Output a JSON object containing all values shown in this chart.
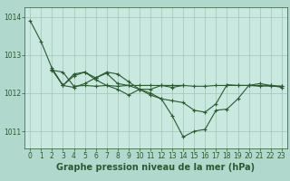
{
  "fig_bg_color": "#b0d8cc",
  "plot_bg_color": "#c8e8e0",
  "grid_color": "#99bbaa",
  "line_color": "#2a5a30",
  "xlabel": "Graphe pression niveau de la mer (hPa)",
  "xlabel_fontsize": 7,
  "tick_fontsize": 5.5,
  "xlim": [
    -0.5,
    23.5
  ],
  "ylim": [
    1010.55,
    1014.25
  ],
  "yticks": [
    1011,
    1012,
    1013,
    1014
  ],
  "xticks": [
    0,
    1,
    2,
    3,
    4,
    5,
    6,
    7,
    8,
    9,
    10,
    11,
    12,
    13,
    14,
    15,
    16,
    17,
    18,
    19,
    20,
    21,
    22,
    23
  ],
  "s1_x": [
    0,
    1,
    2,
    3,
    4,
    5,
    6,
    7,
    8,
    9,
    10,
    11,
    12,
    13,
    14,
    15,
    16,
    17,
    18,
    19,
    20,
    21,
    22,
    23
  ],
  "s1_y": [
    1013.9,
    1013.35,
    1012.65,
    1012.2,
    1012.45,
    1012.55,
    1012.4,
    1012.55,
    1012.5,
    1012.3,
    1012.1,
    1012.0,
    1011.85,
    1011.4,
    1010.85,
    1011.0,
    1011.05,
    1011.55,
    1011.58,
    1011.85,
    1012.2,
    1012.25,
    1012.2,
    1012.15
  ],
  "s2_x": [
    2,
    3,
    4,
    5,
    6,
    7,
    8,
    9,
    10,
    11,
    12,
    13,
    14,
    15,
    16,
    17,
    18,
    19,
    20,
    21,
    22,
    23
  ],
  "s2_y": [
    1012.62,
    1012.2,
    1012.15,
    1012.25,
    1012.4,
    1012.52,
    1012.25,
    1012.2,
    1012.1,
    1011.95,
    1011.85,
    1011.8,
    1011.75,
    1011.55,
    1011.5,
    1011.72,
    1012.22,
    1012.2,
    1012.2,
    1012.18,
    1012.2,
    1012.18
  ],
  "s3_x": [
    2,
    3,
    4,
    5,
    6,
    7,
    8,
    9,
    10,
    11,
    12,
    13,
    14
  ],
  "s3_y": [
    1012.62,
    1012.2,
    1012.5,
    1012.55,
    1012.35,
    1012.2,
    1012.1,
    1011.95,
    1012.1,
    1012.1,
    1012.2,
    1012.15,
    1012.2
  ],
  "s4_x": [
    2,
    3,
    4,
    5,
    6,
    7,
    8,
    9,
    10,
    11,
    12,
    13,
    14,
    15,
    16,
    17,
    18,
    19,
    20,
    21,
    22,
    23
  ],
  "s4_y": [
    1012.6,
    1012.55,
    1012.18,
    1012.2,
    1012.18,
    1012.2,
    1012.18,
    1012.2,
    1012.2,
    1012.2,
    1012.2,
    1012.2,
    1012.2,
    1012.18,
    1012.18,
    1012.2,
    1012.2,
    1012.2,
    1012.2,
    1012.2,
    1012.18,
    1012.18
  ],
  "marker_size": 1.8,
  "linewidth": 0.8
}
